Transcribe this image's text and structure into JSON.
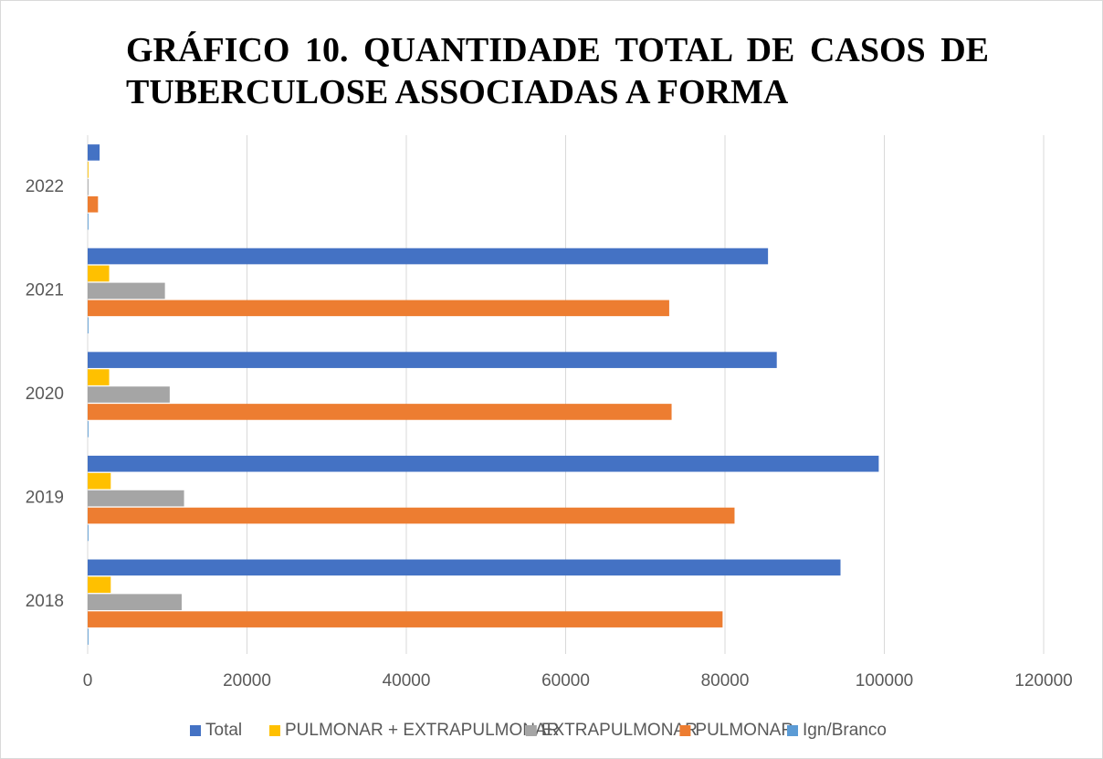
{
  "chart_data": {
    "type": "bar",
    "orientation": "horizontal",
    "title": "GRÁFICO 10. QUANTIDADE TOTAL DE CASOS DE TUBERCULOSE ASSOCIADAS A FORMA",
    "categories": [
      "2018",
      "2019",
      "2020",
      "2021",
      "2022"
    ],
    "series": [
      {
        "name": "Total",
        "color": "#4472c4",
        "values": [
          94500,
          99300,
          86500,
          85400,
          1500
        ]
      },
      {
        "name": "PULMONAR + EXTRAPULMONAR",
        "color": "#ffc000",
        "values": [
          2900,
          2900,
          2700,
          2700,
          100
        ]
      },
      {
        "name": "EXTRAPULMONAR",
        "color": "#a5a5a5",
        "values": [
          11800,
          12100,
          10300,
          9700,
          100
        ]
      },
      {
        "name": "PULMONAR",
        "color": "#ed7d31",
        "values": [
          79700,
          81200,
          73300,
          73000,
          1300
        ]
      },
      {
        "name": "Ign/Branco",
        "color": "#5b9bd5",
        "values": [
          100,
          100,
          100,
          100,
          100
        ]
      }
    ],
    "xlim": [
      0,
      120000
    ],
    "xticks": [
      0,
      20000,
      40000,
      60000,
      80000,
      100000,
      120000
    ],
    "grid": true,
    "legend": "bottom"
  }
}
